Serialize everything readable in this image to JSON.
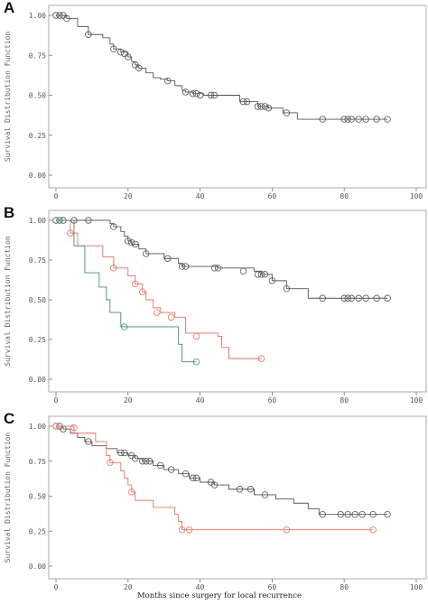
{
  "figure": {
    "xlabel": "Months since surgery for local recurrence"
  },
  "colors": {
    "gray": "#555555",
    "red": "#e8705c",
    "green": "#3f8f6e"
  },
  "chart_data": [
    {
      "type": "line",
      "panel": "A",
      "ylabel": "Survival Distribution Function",
      "xlim": [
        0,
        100
      ],
      "ylim": [
        0,
        1
      ],
      "xticks": [
        "0",
        "20",
        "40",
        "60",
        "80",
        "100"
      ],
      "yticks": [
        "0.00",
        "0.25",
        "0.50",
        "0.75",
        "1.00"
      ],
      "grid": false,
      "series": [
        {
          "color": "gray",
          "steps": [
            [
              0,
              1.0
            ],
            [
              3,
              0.98
            ],
            [
              6,
              0.93
            ],
            [
              9,
              0.88
            ],
            [
              13,
              0.86
            ],
            [
              15,
              0.82
            ],
            [
              16,
              0.79
            ],
            [
              18,
              0.77
            ],
            [
              20,
              0.74
            ],
            [
              21,
              0.71
            ],
            [
              22,
              0.69
            ],
            [
              23,
              0.67
            ],
            [
              25,
              0.64
            ],
            [
              27,
              0.61
            ],
            [
              29,
              0.6
            ],
            [
              31,
              0.59
            ],
            [
              33,
              0.56
            ],
            [
              35,
              0.53
            ],
            [
              36,
              0.52
            ],
            [
              38,
              0.51
            ],
            [
              41,
              0.5
            ],
            [
              51,
              0.46
            ],
            [
              56,
              0.43
            ],
            [
              59,
              0.42
            ],
            [
              63,
              0.39
            ],
            [
              67,
              0.35
            ],
            [
              92,
              0.35
            ]
          ],
          "censored": [
            [
              0,
              1.0
            ],
            [
              1,
              1.0
            ],
            [
              2,
              1.0
            ],
            [
              3,
              0.98
            ],
            [
              9,
              0.88
            ],
            [
              16,
              0.79
            ],
            [
              18,
              0.77
            ],
            [
              19,
              0.76
            ],
            [
              20,
              0.74
            ],
            [
              22,
              0.69
            ],
            [
              23,
              0.67
            ],
            [
              31,
              0.59
            ],
            [
              36,
              0.52
            ],
            [
              38,
              0.51
            ],
            [
              39,
              0.51
            ],
            [
              40,
              0.5
            ],
            [
              43,
              0.5
            ],
            [
              44,
              0.5
            ],
            [
              52,
              0.46
            ],
            [
              53,
              0.46
            ],
            [
              56,
              0.43
            ],
            [
              57,
              0.43
            ],
            [
              58,
              0.43
            ],
            [
              59,
              0.42
            ],
            [
              64,
              0.39
            ],
            [
              74,
              0.35
            ],
            [
              80,
              0.35
            ],
            [
              81,
              0.35
            ],
            [
              82,
              0.35
            ],
            [
              84,
              0.35
            ],
            [
              86,
              0.35
            ],
            [
              89,
              0.35
            ],
            [
              92,
              0.35
            ]
          ]
        }
      ]
    },
    {
      "type": "line",
      "panel": "B",
      "ylabel": "Survival Distribution Function",
      "xlim": [
        0,
        100
      ],
      "ylim": [
        0,
        1
      ],
      "xticks": [
        "0",
        "20",
        "40",
        "60",
        "80",
        "100"
      ],
      "yticks": [
        "0.00",
        "0.25",
        "0.50",
        "0.75",
        "1.00"
      ],
      "grid": false,
      "series": [
        {
          "color": "gray",
          "steps": [
            [
              0,
              1.0
            ],
            [
              15,
              0.98
            ],
            [
              16,
              0.96
            ],
            [
              18,
              0.93
            ],
            [
              19,
              0.9
            ],
            [
              20,
              0.87
            ],
            [
              21,
              0.85
            ],
            [
              23,
              0.82
            ],
            [
              25,
              0.79
            ],
            [
              30,
              0.76
            ],
            [
              34,
              0.73
            ],
            [
              35,
              0.71
            ],
            [
              45,
              0.7
            ],
            [
              55,
              0.68
            ],
            [
              57,
              0.66
            ],
            [
              60,
              0.62
            ],
            [
              64,
              0.57
            ],
            [
              70,
              0.51
            ],
            [
              92,
              0.51
            ]
          ],
          "censored": [
            [
              0,
              1.0
            ],
            [
              2,
              1.0
            ],
            [
              5,
              1.0
            ],
            [
              9,
              1.0
            ],
            [
              16,
              0.96
            ],
            [
              20,
              0.87
            ],
            [
              21,
              0.86
            ],
            [
              22,
              0.85
            ],
            [
              25,
              0.79
            ],
            [
              31,
              0.76
            ],
            [
              35,
              0.71
            ],
            [
              36,
              0.71
            ],
            [
              44,
              0.7
            ],
            [
              45,
              0.7
            ],
            [
              52,
              0.68
            ],
            [
              56,
              0.66
            ],
            [
              57,
              0.66
            ],
            [
              58,
              0.66
            ],
            [
              60,
              0.62
            ],
            [
              64,
              0.57
            ],
            [
              74,
              0.51
            ],
            [
              80,
              0.51
            ],
            [
              81,
              0.51
            ],
            [
              82,
              0.51
            ],
            [
              84,
              0.51
            ],
            [
              86,
              0.51
            ],
            [
              89,
              0.51
            ],
            [
              92,
              0.51
            ]
          ]
        },
        {
          "color": "red",
          "steps": [
            [
              0,
              1.0
            ],
            [
              4,
              0.92
            ],
            [
              6,
              0.84
            ],
            [
              13,
              0.77
            ],
            [
              16,
              0.7
            ],
            [
              20,
              0.65
            ],
            [
              22,
              0.6
            ],
            [
              24,
              0.55
            ],
            [
              25,
              0.5
            ],
            [
              27,
              0.45
            ],
            [
              29,
              0.42
            ],
            [
              33,
              0.39
            ],
            [
              36,
              0.29
            ],
            [
              45,
              0.27
            ],
            [
              46,
              0.2
            ],
            [
              48,
              0.13
            ],
            [
              57,
              0.13
            ]
          ],
          "censored": [
            [
              1,
              1.0
            ],
            [
              4,
              0.92
            ],
            [
              16,
              0.7
            ],
            [
              22,
              0.6
            ],
            [
              24,
              0.55
            ],
            [
              28,
              0.42
            ],
            [
              32,
              0.39
            ],
            [
              39,
              0.27
            ],
            [
              57,
              0.13
            ]
          ]
        },
        {
          "color": "green",
          "steps": [
            [
              0,
              1.0
            ],
            [
              5,
              0.84
            ],
            [
              8,
              0.67
            ],
            [
              12,
              0.58
            ],
            [
              14,
              0.5
            ],
            [
              15,
              0.42
            ],
            [
              18,
              0.33
            ],
            [
              33,
              0.33
            ],
            [
              34,
              0.22
            ],
            [
              35,
              0.11
            ],
            [
              39,
              0.11
            ]
          ],
          "censored": [
            [
              1,
              1.0
            ],
            [
              19,
              0.33
            ],
            [
              39,
              0.11
            ]
          ]
        }
      ]
    },
    {
      "type": "line",
      "panel": "C",
      "ylabel": "Survival Distribution Function",
      "xlim": [
        0,
        100
      ],
      "ylim": [
        0,
        1
      ],
      "xticks": [
        "0",
        "20",
        "40",
        "60",
        "80",
        "100"
      ],
      "yticks": [
        "0.00",
        "0.25",
        "0.50",
        "0.75",
        "1.00"
      ],
      "grid": false,
      "series": [
        {
          "color": "gray",
          "steps": [
            [
              0,
              1.0
            ],
            [
              2,
              0.98
            ],
            [
              4,
              0.95
            ],
            [
              6,
              0.92
            ],
            [
              8,
              0.89
            ],
            [
              10,
              0.86
            ],
            [
              14,
              0.84
            ],
            [
              17,
              0.81
            ],
            [
              20,
              0.79
            ],
            [
              22,
              0.77
            ],
            [
              24,
              0.75
            ],
            [
              27,
              0.72
            ],
            [
              30,
              0.69
            ],
            [
              34,
              0.66
            ],
            [
              37,
              0.63
            ],
            [
              40,
              0.6
            ],
            [
              44,
              0.58
            ],
            [
              48,
              0.55
            ],
            [
              55,
              0.51
            ],
            [
              61,
              0.48
            ],
            [
              66,
              0.45
            ],
            [
              70,
              0.41
            ],
            [
              73,
              0.37
            ],
            [
              92,
              0.37
            ]
          ],
          "censored": [
            [
              0,
              1.0
            ],
            [
              1,
              1.0
            ],
            [
              2,
              0.98
            ],
            [
              9,
              0.89
            ],
            [
              18,
              0.81
            ],
            [
              19,
              0.81
            ],
            [
              21,
              0.79
            ],
            [
              22,
              0.77
            ],
            [
              24,
              0.75
            ],
            [
              25,
              0.75
            ],
            [
              26,
              0.75
            ],
            [
              29,
              0.72
            ],
            [
              32,
              0.69
            ],
            [
              36,
              0.66
            ],
            [
              38,
              0.63
            ],
            [
              39,
              0.63
            ],
            [
              43,
              0.6
            ],
            [
              44,
              0.58
            ],
            [
              51,
              0.55
            ],
            [
              54,
              0.55
            ],
            [
              58,
              0.51
            ],
            [
              74,
              0.37
            ],
            [
              79,
              0.37
            ],
            [
              81,
              0.37
            ],
            [
              83,
              0.37
            ],
            [
              85,
              0.37
            ],
            [
              88,
              0.37
            ],
            [
              92,
              0.37
            ]
          ]
        },
        {
          "color": "red",
          "steps": [
            [
              0,
              1.0
            ],
            [
              5,
              0.95
            ],
            [
              11,
              0.89
            ],
            [
              14,
              0.79
            ],
            [
              15,
              0.74
            ],
            [
              18,
              0.68
            ],
            [
              19,
              0.63
            ],
            [
              20,
              0.58
            ],
            [
              21,
              0.53
            ],
            [
              22,
              0.47
            ],
            [
              27,
              0.42
            ],
            [
              33,
              0.37
            ],
            [
              34,
              0.32
            ],
            [
              35,
              0.26
            ],
            [
              88,
              0.26
            ]
          ],
          "censored": [
            [
              0,
              1.0
            ],
            [
              5,
              0.99
            ],
            [
              15,
              0.74
            ],
            [
              21,
              0.53
            ],
            [
              35,
              0.26
            ],
            [
              37,
              0.26
            ],
            [
              64,
              0.26
            ],
            [
              88,
              0.26
            ]
          ]
        }
      ]
    }
  ]
}
